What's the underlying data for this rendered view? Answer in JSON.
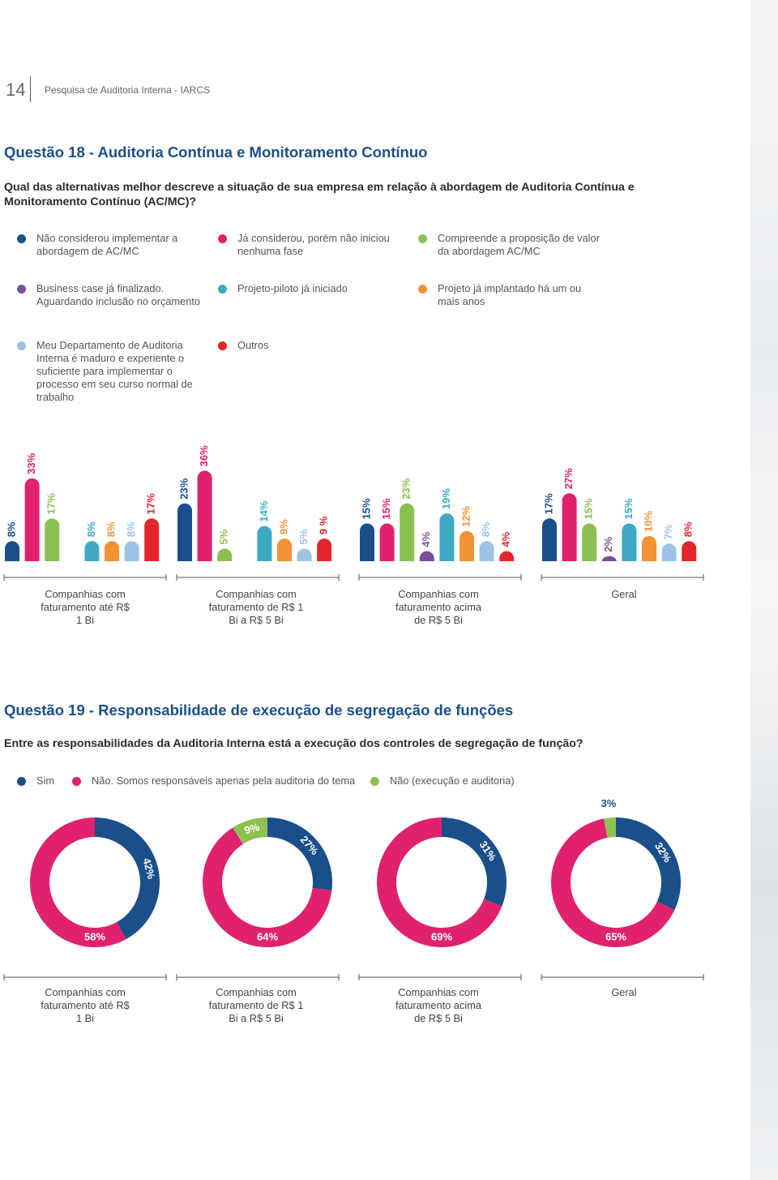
{
  "header": {
    "page_number": "14",
    "publication": "Pesquisa de  Auditoria Interna - IARCS"
  },
  "q18": {
    "title": "Questão 18 - Auditoria Contínua e Monitoramento Contínuo",
    "question": "Qual das alternativas melhor descreve a situação de sua empresa em relação à abordagem de Auditoria Contínua e Monitoramento Contínuo (AC/MC)?",
    "legend": [
      {
        "label": "Não considerou implementar a abordagem de AC/MC",
        "color": "#1b4f8a"
      },
      {
        "label": "Já considerou, porém não iniciou nenhuma fase",
        "color": "#e0226e"
      },
      {
        "label": "Compreende a proposição de valor da abordagem AC/MC",
        "color": "#8cc152"
      },
      {
        "label": "Business case já finalizado. Aguardando inclusão no orçamento",
        "color": "#7b4f9d"
      },
      {
        "label": "Projeto-piloto já iniciado",
        "color": "#3fa9c4"
      },
      {
        "label": "Projeto já implantado há um ou mais anos",
        "color": "#f39237"
      },
      {
        "label": "Meu Departamento de Auditoria Interna é maduro e experiente o suficiente para implementar o processo em seu curso normal de trabalho",
        "color": "#9dc3e6"
      },
      {
        "label": "Outros",
        "color": "#e2262c"
      }
    ],
    "chart": {
      "type": "bar",
      "groups": [
        {
          "label": "Companhias com faturamento até R$ 1 Bi",
          "values": [
            8,
            33,
            17,
            null,
            8,
            8,
            8,
            17
          ],
          "value_labels": [
            "8%",
            "33%",
            "17%",
            null,
            "8%",
            "8%",
            "8%",
            "17%"
          ]
        },
        {
          "label": "Companhias com faturamento de R$ 1 Bi a R$ 5 Bi",
          "values": [
            23,
            36,
            5,
            null,
            14,
            9,
            5,
            9
          ],
          "value_labels": [
            "23%",
            "36%",
            "5%",
            null,
            "14%",
            "9%",
            "5%",
            "9 %"
          ]
        },
        {
          "label": "Companhias com faturamento acima de R$ 5 Bi",
          "values": [
            15,
            15,
            23,
            4,
            19,
            12,
            8,
            4
          ],
          "value_labels": [
            "15%",
            "15%",
            "23%",
            "4%",
            "19%",
            "12%",
            "8%",
            "4%"
          ]
        },
        {
          "label": "Geral",
          "values": [
            17,
            27,
            15,
            2,
            15,
            10,
            7,
            8
          ],
          "value_labels": [
            "17%",
            "27%",
            "15%",
            "2%",
            "15%",
            "10%",
            "7%",
            "8%"
          ]
        }
      ]
    }
  },
  "q19": {
    "title": "Questão 19 - Responsabilidade de execução de segregação de funções",
    "question": "Entre as responsabilidades da Auditoria Interna está a execução dos controles de segregação de função?",
    "legend": [
      {
        "label": "Sim",
        "color": "#1b4f8a"
      },
      {
        "label": "Não. Somos responsáveis apenas pela auditoria do tema",
        "color": "#e0226e"
      },
      {
        "label": "Não (execução e auditoria)",
        "color": "#8cc152"
      }
    ],
    "chart": {
      "type": "donut",
      "groups": [
        {
          "label": "Companhias com faturamento até R$ 1 Bi",
          "values": [
            42,
            58,
            null
          ],
          "value_labels": [
            "42%",
            "58%",
            null
          ]
        },
        {
          "label": "Companhias com faturamento de R$ 1 Bi a R$ 5 Bi",
          "values": [
            27,
            64,
            9
          ],
          "value_labels": [
            "27%",
            "64%",
            "9%"
          ]
        },
        {
          "label": "Companhias com faturamento acima de R$ 5 Bi",
          "values": [
            31,
            69,
            null
          ],
          "value_labels": [
            "31%",
            "69%",
            null
          ]
        },
        {
          "label": "Geral",
          "values": [
            32,
            65,
            3
          ],
          "value_labels": [
            "32%",
            "65%",
            "3%"
          ]
        }
      ]
    }
  }
}
